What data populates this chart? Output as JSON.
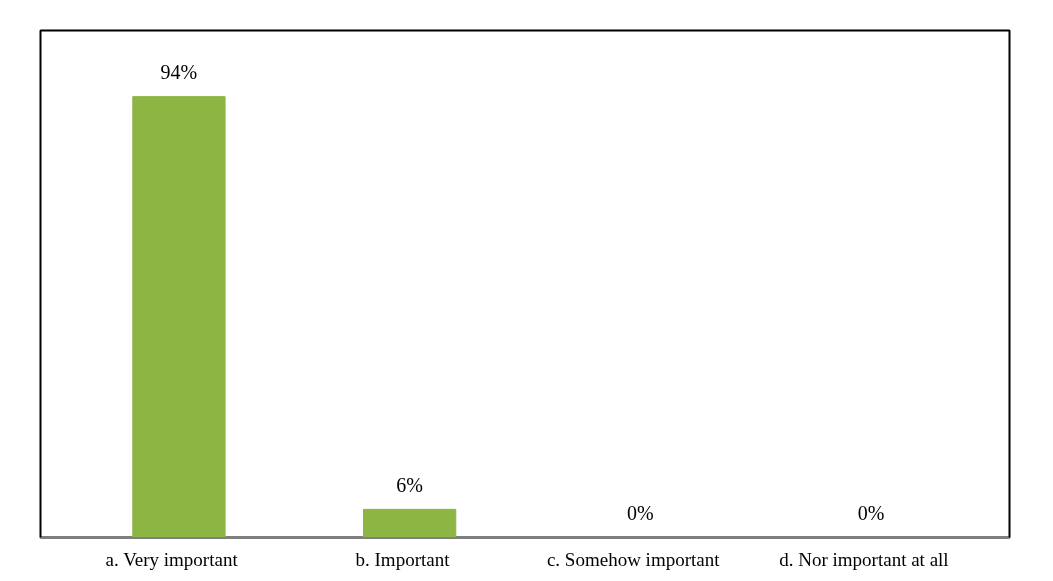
{
  "chart_data": {
    "type": "bar",
    "categories": [
      "a.    Very important",
      "b.    Important",
      "c.    Somehow important",
      "d.    Nor important at all"
    ],
    "values": [
      94,
      6,
      0,
      0
    ],
    "value_labels": [
      "94%",
      "6%",
      "0%",
      "0%"
    ],
    "color": "#8db544",
    "grid": false
  }
}
